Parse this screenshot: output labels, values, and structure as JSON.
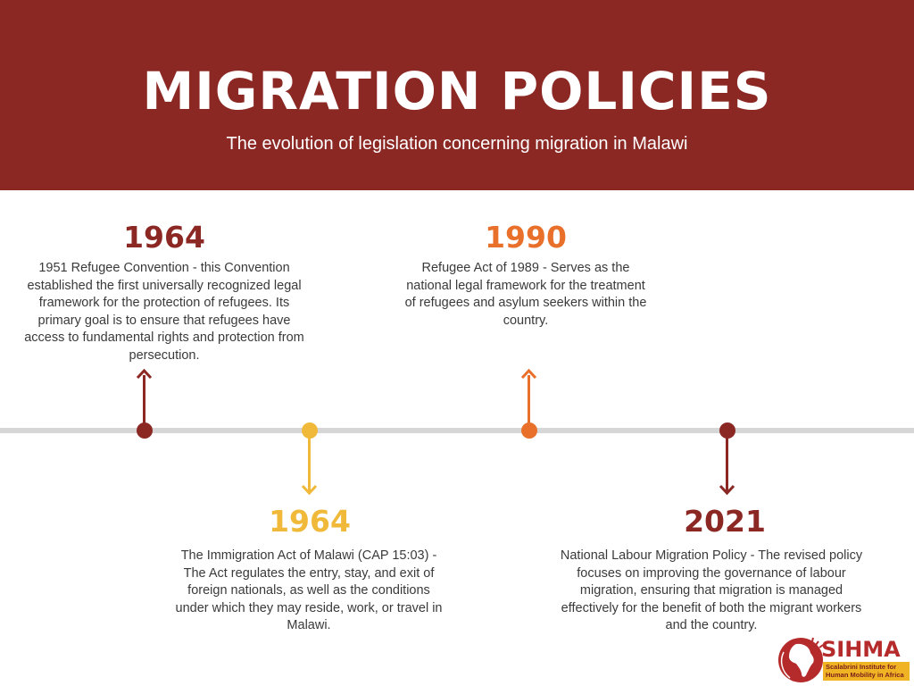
{
  "header": {
    "title": "MIGRATION POLICIES",
    "subtitle": "The evolution of legislation concerning migration in Malawi"
  },
  "colors": {
    "header_bg": "#8b2824",
    "axis": "#d6d6d6",
    "dark_red": "#8b2824",
    "yellow": "#f0b93a",
    "orange": "#e8702a"
  },
  "timeline": [
    {
      "year": "1964",
      "text": "1951 Refugee Convention - this Convention established the first universally recognized legal framework for the protection of refugees. Its primary goal is to ensure that refugees have access to fundamental rights and protection from persecution.",
      "position": "above",
      "color": "#8b2824"
    },
    {
      "year": "1964",
      "text": "The Immigration Act of Malawi (CAP 15:03) - The Act regulates the entry, stay, and exit of foreign nationals, as well as the conditions under which they may reside, work, or travel in Malawi.",
      "position": "below",
      "color": "#f0b93a"
    },
    {
      "year": "1990",
      "text": "Refugee Act of 1989 - Serves as the national legal framework for the treatment of refugees and asylum seekers within the country.",
      "position": "above",
      "color": "#e8702a"
    },
    {
      "year": "2021",
      "text": "National Labour Migration Policy - The revised policy focuses on improving the governance of labour migration, ensuring that migration is managed effectively for the benefit of both the migrant workers and the country.",
      "position": "below",
      "color": "#8b2824"
    }
  ],
  "logo": {
    "name": "SIHMA",
    "tagline": "Scalabrini Institute for Human Mobility in Africa",
    "icon": "globe-africa-icon"
  }
}
